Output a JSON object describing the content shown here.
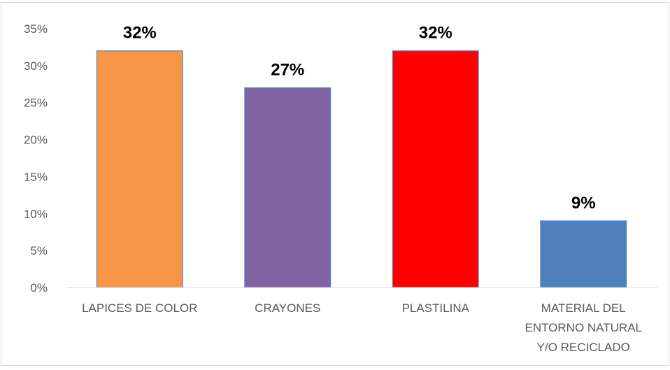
{
  "chart_data": {
    "type": "bar",
    "title": "",
    "xlabel": "",
    "ylabel": "",
    "ylim": [
      0,
      35
    ],
    "yticks": [
      "0%",
      "5%",
      "10%",
      "15%",
      "20%",
      "25%",
      "30%",
      "35%"
    ],
    "ytick_values": [
      0,
      5,
      10,
      15,
      20,
      25,
      30,
      35
    ],
    "grid": false,
    "legend": "none",
    "categories": [
      [
        "LAPICES DE COLOR"
      ],
      [
        "CRAYONES"
      ],
      [
        "PLASTILINA"
      ],
      [
        "MATERIAL DEL",
        "ENTORNO NATURAL",
        "Y/O RECICLADO"
      ]
    ],
    "values": [
      32,
      27,
      32,
      9
    ],
    "data_labels": [
      "32%",
      "27%",
      "32%",
      "9%"
    ],
    "colors": [
      "#f79646",
      "#8064a2",
      "#ff0000",
      "#4f81bd"
    ],
    "bar_outline_color": "#4f81bd"
  }
}
